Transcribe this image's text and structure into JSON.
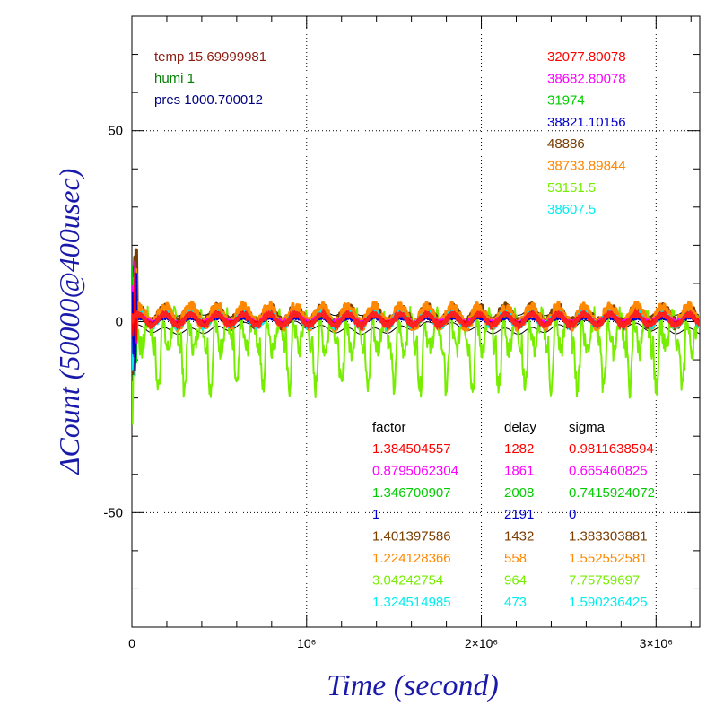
{
  "chart_data": {
    "type": "line",
    "xlabel": "Time (second)",
    "ylabel": "ΔCount (50000@400usec)",
    "xlim": [
      0,
      3250000
    ],
    "ylim": [
      -80,
      80
    ],
    "x_ticks": [
      {
        "value": 0,
        "label": "0"
      },
      {
        "value": 1000000,
        "label": "10⁶"
      },
      {
        "value": 2000000,
        "label": "2×10⁶"
      },
      {
        "value": 3000000,
        "label": "3×10⁶"
      }
    ],
    "y_ticks": [
      {
        "value": 50,
        "label": "50"
      },
      {
        "value": 0,
        "label": "0"
      },
      {
        "value": -50,
        "label": "-50"
      }
    ],
    "grid": true,
    "conditions": [
      {
        "text": "temp 15.69999981",
        "color": "#8b1a0e"
      },
      {
        "text": "humi 1",
        "color": "#008000"
      },
      {
        "text": "pres 1000.700012",
        "color": "#000080"
      }
    ],
    "table_headers": {
      "factor": "factor",
      "delay": "delay",
      "sigma": "sigma"
    },
    "series": [
      {
        "base": "32077.80078",
        "factor": "1.384504557",
        "delay": "1282",
        "sigma": "0.9811638594",
        "color": "#ff0000",
        "amp": 1.3,
        "period": 150000,
        "offset": 0.6,
        "noise": 0.8
      },
      {
        "base": "38682.80078",
        "factor": "0.8795062304",
        "delay": "1861",
        "sigma": "0.665460825",
        "color": "#ff00ff",
        "amp": 0.9,
        "period": 150000,
        "offset": 0.8,
        "noise": 0.6
      },
      {
        "base": "31974",
        "factor": "1.346700907",
        "delay": "2008",
        "sigma": "0.7415924072",
        "color": "#00cc00",
        "amp": 1.1,
        "period": 150000,
        "offset": 0.5,
        "noise": 0.7
      },
      {
        "base": "38821.10156",
        "factor": "1",
        "delay": "2191",
        "sigma": "0",
        "color": "#0000cc",
        "amp": 0.6,
        "period": 150000,
        "offset": 0.2,
        "noise": 0.3
      },
      {
        "base": "48886",
        "factor": "1.401397586",
        "delay": "1432",
        "sigma": "1.383303881",
        "color": "#7a3d00",
        "amp": 2.0,
        "period": 150000,
        "offset": 1.5,
        "noise": 1.4
      },
      {
        "base": "38733.89844",
        "factor": "1.224128366",
        "delay": "558",
        "sigma": "1.552552581",
        "color": "#ff8800",
        "amp": 2.2,
        "period": 150000,
        "offset": 1.4,
        "noise": 1.6
      },
      {
        "base": "53151.5",
        "factor": "3.04242754",
        "delay": "964",
        "sigma": "7.75759697",
        "color": "#77ee00",
        "amp": 12,
        "period": 150000,
        "offset": -3,
        "noise": 3
      },
      {
        "base": "38607.5",
        "factor": "1.324514985",
        "delay": "473",
        "sigma": "1.590236425",
        "color": "#00eeee",
        "amp": 1.5,
        "period": 150000,
        "offset": 0.5,
        "noise": 1.2
      }
    ],
    "smoothed": {
      "color": "#ff2020",
      "amp": 1.5,
      "offset": 0.5
    },
    "reference_lines": {
      "color": "#000000",
      "amp": 2.5
    }
  }
}
